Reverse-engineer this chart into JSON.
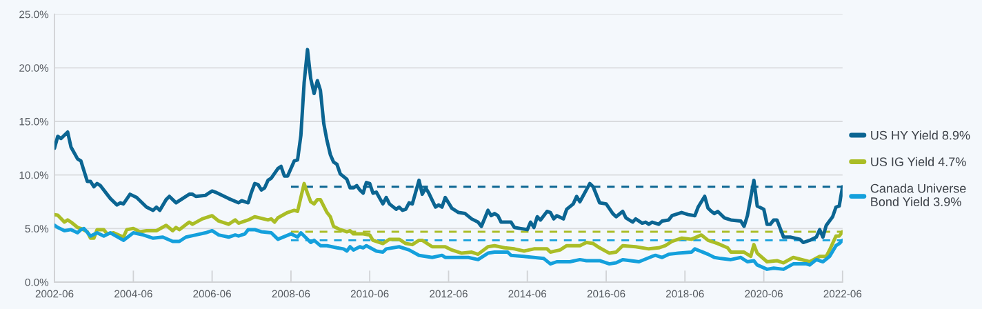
{
  "chart_data": {
    "type": "line",
    "xlim": [
      "2002-06",
      "2022-06"
    ],
    "xticks": [
      {
        "value": "2002-06",
        "label": "2002-06"
      },
      {
        "value": "2004-06",
        "label": "2004-06"
      },
      {
        "value": "2006-06",
        "label": "2006-06"
      },
      {
        "value": "2008-06",
        "label": "2008-06"
      },
      {
        "value": "2010-06",
        "label": "2010-06"
      },
      {
        "value": "2012-06",
        "label": "2012-06"
      },
      {
        "value": "2014-06",
        "label": "2014-06"
      },
      {
        "value": "2016-06",
        "label": "2016-06"
      },
      {
        "value": "2018-06",
        "label": "2018-06"
      },
      {
        "value": "2020-06",
        "label": "2020-06"
      },
      {
        "value": "2022-06",
        "label": "2022-06"
      }
    ],
    "ylim": [
      0,
      25
    ],
    "yticks": [
      {
        "value": 0,
        "label": "0.0%"
      },
      {
        "value": 5,
        "label": "5.0%"
      },
      {
        "value": 10,
        "label": "10.0%"
      },
      {
        "value": 15,
        "label": "15.0%"
      },
      {
        "value": 20,
        "label": "20.0%"
      },
      {
        "value": 25,
        "label": "25.0%"
      }
    ],
    "grid": "y",
    "legend": "right",
    "line_style": "solid",
    "series": [
      {
        "name": "US HY Yield 8.9%",
        "color": "#0b6592",
        "x": [
          "2002-06",
          "2002-07",
          "2002-08",
          "2002-10",
          "2002-11",
          "2003-01",
          "2003-02",
          "2003-03",
          "2003-04",
          "2003-05",
          "2003-06",
          "2003-07",
          "2003-08",
          "2003-10",
          "2003-11",
          "2004-01",
          "2004-02",
          "2004-03",
          "2004-05",
          "2004-07",
          "2004-10",
          "2004-12",
          "2005-01",
          "2005-02",
          "2005-04",
          "2005-05",
          "2005-07",
          "2005-11",
          "2005-12",
          "2006-01",
          "2006-04",
          "2006-06",
          "2006-07",
          "2006-11",
          "2007-02",
          "2007-03",
          "2007-05",
          "2007-06",
          "2007-07",
          "2007-08",
          "2007-09",
          "2007-10",
          "2007-11",
          "2007-12",
          "2008-02",
          "2008-03",
          "2008-04",
          "2008-05",
          "2008-07",
          "2008-08",
          "2008-09",
          "2008-10",
          "2008-11",
          "2008-12",
          "2009-01",
          "2009-02",
          "2009-03",
          "2009-04",
          "2009-05",
          "2009-06",
          "2009-07",
          "2009-08",
          "2009-09",
          "2009-11",
          "2009-12",
          "2010-01",
          "2010-02",
          "2010-03",
          "2010-04",
          "2010-05",
          "2010-06",
          "2010-07",
          "2010-08",
          "2010-10",
          "2010-11",
          "2010-12",
          "2011-02",
          "2011-03",
          "2011-04",
          "2011-05",
          "2011-06",
          "2011-07",
          "2011-09",
          "2011-10",
          "2011-11",
          "2011-12",
          "2012-02",
          "2012-03",
          "2012-04",
          "2012-05",
          "2012-07",
          "2012-09",
          "2012-11",
          "2013-01",
          "2013-03",
          "2013-04",
          "2013-06",
          "2013-07",
          "2013-08",
          "2013-09",
          "2013-10",
          "2014-01",
          "2014-02",
          "2014-04",
          "2014-06",
          "2014-07",
          "2014-08",
          "2014-09",
          "2014-10",
          "2014-12",
          "2015-01",
          "2015-02",
          "2015-03",
          "2015-05",
          "2015-06",
          "2015-08",
          "2015-09",
          "2015-10",
          "2016-01",
          "2016-02",
          "2016-04",
          "2016-06",
          "2016-08",
          "2016-09",
          "2016-11",
          "2016-12",
          "2017-02",
          "2017-03",
          "2017-05",
          "2017-06",
          "2017-07",
          "2017-08",
          "2017-10",
          "2017-11",
          "2018-01",
          "2018-02",
          "2018-05",
          "2018-07",
          "2018-09",
          "2018-10",
          "2018-12",
          "2019-01",
          "2019-02",
          "2019-03",
          "2019-04",
          "2019-06",
          "2019-08",
          "2019-11",
          "2019-12",
          "2020-01",
          "2020-03",
          "2020-04",
          "2020-06",
          "2020-07",
          "2020-08",
          "2020-09",
          "2020-10",
          "2020-12",
          "2021-02",
          "2021-05",
          "2021-06",
          "2021-08",
          "2021-10",
          "2021-11",
          "2021-12",
          "2022-01",
          "2022-03",
          "2022-04",
          "2022-05",
          "2022-06"
        ],
        "values": [
          12.5,
          13.6,
          13.4,
          14.0,
          12.6,
          11.5,
          11.3,
          10.4,
          9.4,
          9.4,
          8.9,
          9.2,
          9.0,
          8.2,
          7.8,
          7.2,
          7.4,
          7.3,
          8.2,
          7.9,
          7.0,
          6.7,
          7.0,
          6.7,
          7.7,
          8.0,
          7.4,
          8.2,
          8.2,
          8.0,
          8.1,
          8.5,
          8.4,
          7.8,
          7.4,
          7.6,
          7.4,
          8.4,
          9.2,
          9.1,
          8.6,
          8.8,
          9.5,
          9.7,
          10.6,
          10.8,
          9.9,
          9.9,
          11.3,
          11.4,
          13.7,
          18.6,
          21.7,
          19.0,
          17.6,
          18.8,
          17.9,
          14.8,
          13.2,
          11.9,
          11.2,
          11.0,
          10.1,
          9.6,
          8.8,
          8.8,
          9.0,
          8.6,
          8.3,
          9.3,
          9.2,
          8.3,
          8.4,
          7.3,
          7.9,
          7.3,
          6.8,
          7.0,
          6.7,
          6.8,
          7.4,
          7.3,
          9.5,
          8.2,
          8.8,
          8.3,
          7.0,
          7.2,
          7.0,
          7.9,
          6.9,
          6.5,
          6.4,
          5.9,
          5.6,
          5.2,
          6.7,
          6.2,
          6.4,
          6.2,
          5.6,
          5.6,
          5.1,
          5.0,
          4.9,
          5.6,
          5.1,
          6.1,
          5.8,
          6.6,
          6.5,
          5.9,
          6.2,
          5.9,
          6.8,
          7.3,
          8.0,
          7.5,
          9.2,
          8.9,
          7.4,
          7.3,
          6.4,
          6.1,
          6.6,
          6.0,
          5.6,
          5.9,
          5.5,
          5.6,
          5.4,
          5.6,
          5.4,
          5.7,
          5.8,
          6.2,
          6.5,
          6.3,
          6.2,
          7.0,
          8.0,
          6.9,
          6.6,
          6.4,
          6.6,
          6.0,
          5.8,
          5.7,
          5.2,
          6.2,
          9.5,
          7.1,
          6.8,
          5.4,
          5.4,
          5.8,
          5.8,
          4.2,
          4.2,
          4.0,
          3.7,
          3.9,
          4.2,
          4.9,
          4.2,
          5.3,
          6.1,
          7.0,
          7.1,
          8.9
        ]
      },
      {
        "name": "US IG Yield 4.7%",
        "color": "#aabd26",
        "x": [
          "2002-06",
          "2002-07",
          "2002-09",
          "2002-10",
          "2002-11",
          "2003-01",
          "2003-02",
          "2003-04",
          "2003-05",
          "2003-06",
          "2003-07",
          "2003-09",
          "2003-10",
          "2003-12",
          "2004-03",
          "2004-04",
          "2004-06",
          "2004-08",
          "2004-10",
          "2005-01",
          "2005-04",
          "2005-06",
          "2005-07",
          "2005-08",
          "2005-11",
          "2005-12",
          "2006-03",
          "2006-06",
          "2006-08",
          "2006-11",
          "2007-01",
          "2007-02",
          "2007-05",
          "2007-07",
          "2007-11",
          "2007-12",
          "2008-01",
          "2008-02",
          "2008-05",
          "2008-07",
          "2008-08",
          "2008-10",
          "2008-11",
          "2008-12",
          "2009-01",
          "2009-02",
          "2009-03",
          "2009-05",
          "2009-06",
          "2009-07",
          "2009-09",
          "2009-11",
          "2009-12",
          "2010-01",
          "2010-04",
          "2010-06",
          "2010-07",
          "2010-10",
          "2010-12",
          "2011-03",
          "2011-05",
          "2011-07",
          "2011-09",
          "2011-10",
          "2012-01",
          "2012-03",
          "2012-05",
          "2012-07",
          "2012-10",
          "2013-01",
          "2013-03",
          "2013-06",
          "2013-08",
          "2013-11",
          "2014-02",
          "2014-05",
          "2014-08",
          "2014-12",
          "2015-01",
          "2015-04",
          "2015-06",
          "2015-10",
          "2015-12",
          "2016-02",
          "2016-04",
          "2016-07",
          "2016-09",
          "2016-11",
          "2017-03",
          "2017-07",
          "2017-10",
          "2017-12",
          "2018-02",
          "2018-05",
          "2018-08",
          "2018-11",
          "2019-01",
          "2019-04",
          "2019-07",
          "2019-08",
          "2019-12",
          "2020-02",
          "2020-03",
          "2020-04",
          "2020-07",
          "2020-10",
          "2020-12",
          "2021-03",
          "2021-08",
          "2021-11",
          "2022-01",
          "2022-02",
          "2022-04",
          "2022-05",
          "2022-06"
        ],
        "values": [
          6.3,
          6.25,
          5.6,
          5.8,
          5.6,
          5.1,
          5.0,
          4.7,
          4.1,
          4.1,
          4.9,
          4.9,
          4.5,
          4.6,
          4.2,
          4.9,
          5.0,
          4.7,
          4.8,
          4.8,
          5.3,
          4.8,
          5.1,
          4.9,
          5.6,
          5.4,
          5.9,
          6.2,
          5.7,
          5.4,
          5.8,
          5.5,
          5.8,
          6.1,
          5.8,
          5.9,
          5.6,
          6.0,
          6.5,
          6.7,
          6.6,
          9.2,
          8.3,
          7.5,
          7.3,
          7.7,
          7.7,
          6.5,
          6.1,
          5.2,
          4.9,
          4.7,
          4.8,
          4.5,
          4.5,
          4.4,
          3.9,
          3.6,
          4.0,
          4.0,
          3.6,
          3.5,
          3.9,
          3.9,
          3.3,
          3.3,
          3.3,
          3.0,
          2.7,
          2.8,
          2.6,
          3.3,
          3.4,
          3.2,
          3.1,
          2.9,
          3.1,
          3.1,
          2.8,
          3.0,
          3.4,
          3.4,
          3.7,
          3.6,
          3.2,
          2.7,
          2.8,
          3.4,
          3.3,
          3.1,
          3.2,
          3.4,
          3.8,
          4.1,
          4.0,
          4.4,
          3.9,
          3.6,
          3.2,
          2.8,
          2.8,
          2.4,
          3.5,
          2.7,
          1.9,
          2.0,
          1.8,
          2.3,
          1.9,
          2.4,
          2.4,
          3.0,
          4.3,
          4.3,
          4.7
        ]
      },
      {
        "name": "Canada Universe\nBond Yield 3.9%",
        "color": "#14a0dc",
        "x": [
          "2002-06",
          "2002-07",
          "2002-09",
          "2002-11",
          "2003-01",
          "2003-02",
          "2003-03",
          "2003-05",
          "2003-07",
          "2003-09",
          "2003-11",
          "2004-03",
          "2004-06",
          "2004-09",
          "2004-12",
          "2005-03",
          "2005-06",
          "2005-08",
          "2005-10",
          "2006-01",
          "2006-04",
          "2006-06",
          "2006-08",
          "2006-11",
          "2007-01",
          "2007-02",
          "2007-04",
          "2007-05",
          "2007-07",
          "2007-09",
          "2007-12",
          "2008-02",
          "2008-06",
          "2008-08",
          "2008-09",
          "2008-12",
          "2009-01",
          "2009-03",
          "2009-05",
          "2009-08",
          "2009-10",
          "2009-11",
          "2009-12",
          "2010-01",
          "2010-03",
          "2010-04",
          "2010-05",
          "2010-08",
          "2010-10",
          "2010-11",
          "2011-03",
          "2011-06",
          "2011-09",
          "2012-01",
          "2012-04",
          "2012-05",
          "2012-12",
          "2013-03",
          "2013-06",
          "2013-08",
          "2013-12",
          "2014-01",
          "2014-05",
          "2014-11",
          "2015-01",
          "2015-03",
          "2015-07",
          "2015-10",
          "2015-12",
          "2016-04",
          "2016-07",
          "2016-09",
          "2016-11",
          "2017-04",
          "2017-08",
          "2017-09",
          "2017-11",
          "2018-01",
          "2018-04",
          "2018-08",
          "2018-09",
          "2019-01",
          "2019-03",
          "2019-05",
          "2019-08",
          "2019-11",
          "2020-01",
          "2020-03",
          "2020-04",
          "2020-07",
          "2020-09",
          "2020-12",
          "2021-03",
          "2021-07",
          "2021-08",
          "2021-10",
          "2021-12",
          "2022-02",
          "2022-04",
          "2022-05",
          "2022-06"
        ],
        "values": [
          5.3,
          5.1,
          4.8,
          4.9,
          4.6,
          4.9,
          5.0,
          4.3,
          4.6,
          4.3,
          4.6,
          3.9,
          4.6,
          4.4,
          4.1,
          4.2,
          3.8,
          3.8,
          4.2,
          4.4,
          4.6,
          4.8,
          4.4,
          4.2,
          4.4,
          4.3,
          4.5,
          4.9,
          4.9,
          4.7,
          4.6,
          4.0,
          4.5,
          4.2,
          4.6,
          3.7,
          3.9,
          3.4,
          3.4,
          3.2,
          3.1,
          2.9,
          3.3,
          3.0,
          3.3,
          3.2,
          3.4,
          2.9,
          2.8,
          3.1,
          3.3,
          3.0,
          2.5,
          2.3,
          2.5,
          2.3,
          2.3,
          2.1,
          2.7,
          2.8,
          2.8,
          2.5,
          2.4,
          2.2,
          1.7,
          1.9,
          1.9,
          2.1,
          2.0,
          2.0,
          1.7,
          1.8,
          2.1,
          1.9,
          2.4,
          2.5,
          2.3,
          2.6,
          2.7,
          2.8,
          3.1,
          2.6,
          2.3,
          2.2,
          2.1,
          2.3,
          1.9,
          2.0,
          1.6,
          1.2,
          1.3,
          1.2,
          1.7,
          1.7,
          1.6,
          2.1,
          1.9,
          2.4,
          3.4,
          3.6,
          3.9
        ]
      },
      {
        "color": "#0b6592",
        "line_style": "dashed",
        "x": [
          "2008-06",
          "2022-06"
        ],
        "values": [
          8.9,
          8.9
        ]
      },
      {
        "color": "#aabd26",
        "line_style": "dashed",
        "x": [
          "2008-06",
          "2022-06"
        ],
        "values": [
          4.7,
          4.7
        ]
      },
      {
        "color": "#14a0dc",
        "line_style": "dashed",
        "x": [
          "2008-06",
          "2022-06"
        ],
        "values": [
          3.9,
          3.9
        ]
      }
    ]
  }
}
